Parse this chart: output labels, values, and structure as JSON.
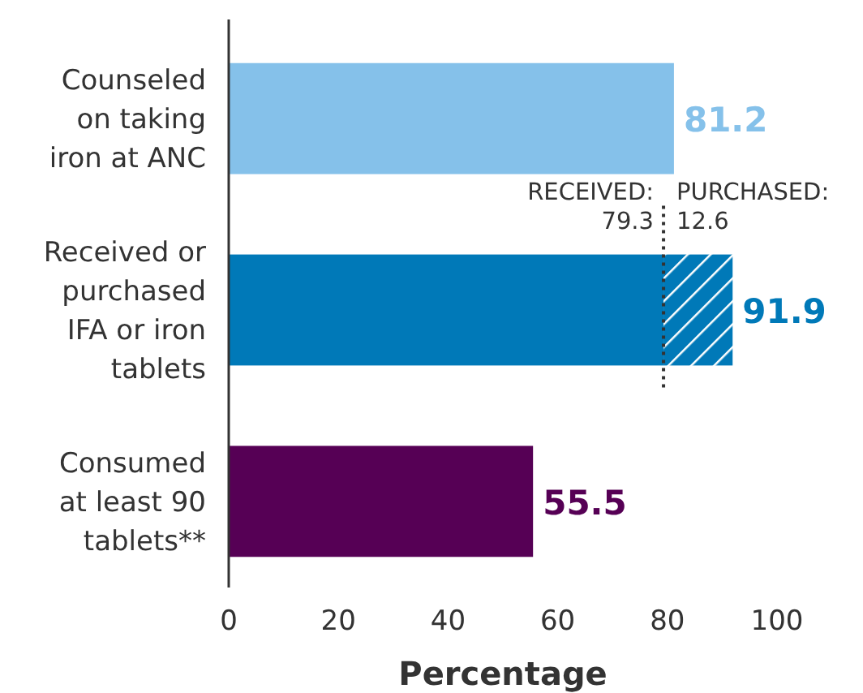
{
  "chart_data": {
    "type": "bar",
    "orientation": "horizontal",
    "stacked": true,
    "categories": [
      "Counseled on taking iron at ANC",
      "Received or purchased IFA or iron tablets",
      "Consumed at least 90 tablets**"
    ],
    "series": [
      {
        "colors": [
          "#85c1ea",
          "#0079b8",
          "#560055"
        ],
        "values": [
          81.2,
          79.3,
          55.5
        ]
      },
      {
        "color": "#0079b8",
        "values": [
          null,
          12.6,
          null
        ]
      }
    ],
    "totals": [
      "81.2",
      "91.9",
      "55.5"
    ],
    "xlabel": "Percentage",
    "xlim": [
      0,
      100
    ],
    "xticks": [
      0,
      20,
      40,
      60,
      80,
      100
    ],
    "ref_lines": [
      {
        "axis": "x",
        "value": 79.3,
        "line_style": "dotted",
        "color": "#333333"
      }
    ],
    "annotations": [
      "RECEIVED:\n79.3",
      "PURCHASED:\n12.6"
    ]
  }
}
